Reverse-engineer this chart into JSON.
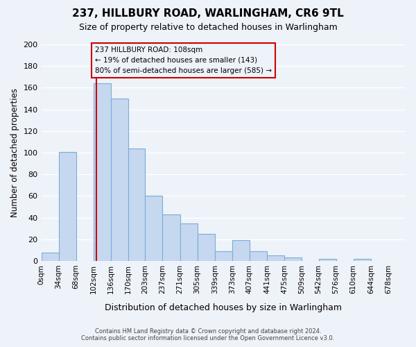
{
  "title": "237, HILLBURY ROAD, WARLINGHAM, CR6 9TL",
  "subtitle": "Size of property relative to detached houses in Warlingham",
  "xlabel": "Distribution of detached houses by size in Warlingham",
  "ylabel": "Number of detached properties",
  "bin_labels": [
    "0sqm",
    "34sqm",
    "68sqm",
    "102sqm",
    "136sqm",
    "170sqm",
    "203sqm",
    "237sqm",
    "271sqm",
    "305sqm",
    "339sqm",
    "373sqm",
    "407sqm",
    "441sqm",
    "475sqm",
    "509sqm",
    "542sqm",
    "576sqm",
    "610sqm",
    "644sqm",
    "678sqm"
  ],
  "bin_edges": [
    0,
    34,
    68,
    102,
    136,
    170,
    203,
    237,
    271,
    305,
    339,
    373,
    407,
    441,
    475,
    509,
    542,
    576,
    610,
    644,
    678,
    712
  ],
  "counts": [
    8,
    101,
    0,
    164,
    150,
    104,
    60,
    43,
    35,
    25,
    9,
    19,
    9,
    5,
    3,
    0,
    2,
    0,
    2,
    0,
    0
  ],
  "bar_color": "#c5d8f0",
  "bar_edge_color": "#7aadd4",
  "property_value": 108,
  "annotation_text_line1": "237 HILLBURY ROAD: 108sqm",
  "annotation_text_line2": "← 19% of detached houses are smaller (143)",
  "annotation_text_line3": "80% of semi-detached houses are larger (585) →",
  "vline_color": "#cc0000",
  "annotation_box_edge_color": "#cc0000",
  "ylim": [
    0,
    200
  ],
  "yticks": [
    0,
    20,
    40,
    60,
    80,
    100,
    120,
    140,
    160,
    180,
    200
  ],
  "footer_line1": "Contains HM Land Registry data © Crown copyright and database right 2024.",
  "footer_line2": "Contains public sector information licensed under the Open Government Licence v3.0.",
  "background_color": "#eef2f9",
  "grid_color": "#ffffff"
}
